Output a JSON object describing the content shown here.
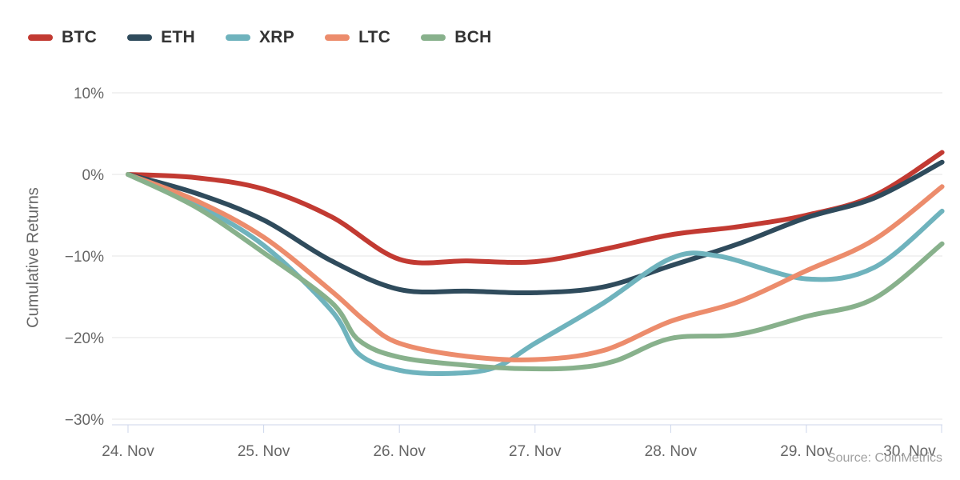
{
  "chart_data": {
    "type": "line",
    "title": "",
    "source": "Source: CoinMetrics",
    "grid": "horizontal-only",
    "legend_position": "top-left",
    "background": "#ffffff",
    "colors": {
      "grid_line": "#e6e6e6",
      "axis_line": "#ccd6eb",
      "axis_label": "#666666",
      "legend_label": "#333333",
      "source_text": "#a0a0a0"
    },
    "y_axis": {
      "title": "Cumulative Returns",
      "unit": "%",
      "range": [
        -30,
        10
      ],
      "ticks": [
        {
          "value": 10,
          "label": "10%"
        },
        {
          "value": 0,
          "label": "0%"
        },
        {
          "value": -10,
          "label": "−10%"
        },
        {
          "value": -20,
          "label": "−20%"
        },
        {
          "value": -30,
          "label": "−30%"
        }
      ]
    },
    "x_axis": {
      "unit": "day",
      "tick_days": [
        0,
        1,
        2,
        3,
        4,
        5,
        6
      ],
      "tick_labels": [
        "24. Nov",
        "25. Nov",
        "26. Nov",
        "27. Nov",
        "28. Nov",
        "29. Nov",
        "30. Nov"
      ]
    },
    "series": [
      {
        "name": "BTC",
        "color": "#c23a32",
        "points": [
          [
            0,
            0
          ],
          [
            0.5,
            -0.4
          ],
          [
            1,
            -1.8
          ],
          [
            1.5,
            -5.2
          ],
          [
            2,
            -10.4
          ],
          [
            2.5,
            -10.6
          ],
          [
            3,
            -10.7
          ],
          [
            3.5,
            -9.2
          ],
          [
            4,
            -7.4
          ],
          [
            4.5,
            -6.4
          ],
          [
            5,
            -5.0
          ],
          [
            5.5,
            -2.6
          ],
          [
            6,
            2.7
          ]
        ]
      },
      {
        "name": "ETH",
        "color": "#2f4b5c",
        "points": [
          [
            0,
            0
          ],
          [
            0.5,
            -2.3
          ],
          [
            1,
            -5.6
          ],
          [
            1.5,
            -10.6
          ],
          [
            2,
            -14.1
          ],
          [
            2.5,
            -14.3
          ],
          [
            3,
            -14.5
          ],
          [
            3.5,
            -13.8
          ],
          [
            4,
            -11.2
          ],
          [
            4.5,
            -8.5
          ],
          [
            5,
            -5.3
          ],
          [
            5.5,
            -2.9
          ],
          [
            6,
            1.5
          ]
        ]
      },
      {
        "name": "XRP",
        "color": "#6fb3bd",
        "points": [
          [
            0,
            0
          ],
          [
            0.5,
            -3.7
          ],
          [
            1,
            -8.7
          ],
          [
            1.5,
            -16.7
          ],
          [
            1.7,
            -22.0
          ],
          [
            2,
            -24.0
          ],
          [
            2.35,
            -24.4
          ],
          [
            2.7,
            -23.7
          ],
          [
            3,
            -20.7
          ],
          [
            3.5,
            -15.8
          ],
          [
            4,
            -10.3
          ],
          [
            4.35,
            -10.0
          ],
          [
            5,
            -12.8
          ],
          [
            5.5,
            -11.4
          ],
          [
            6,
            -4.5
          ]
        ]
      },
      {
        "name": "LTC",
        "color": "#ec8c6c",
        "points": [
          [
            0,
            0
          ],
          [
            0.5,
            -3.2
          ],
          [
            1,
            -7.7
          ],
          [
            1.5,
            -14.3
          ],
          [
            1.75,
            -18.0
          ],
          [
            2,
            -20.7
          ],
          [
            2.5,
            -22.3
          ],
          [
            3,
            -22.7
          ],
          [
            3.5,
            -21.6
          ],
          [
            4,
            -18.0
          ],
          [
            4.5,
            -15.6
          ],
          [
            5,
            -11.8
          ],
          [
            5.5,
            -8.0
          ],
          [
            6,
            -1.5
          ]
        ]
      },
      {
        "name": "BCH",
        "color": "#88b18c",
        "points": [
          [
            0,
            0
          ],
          [
            0.5,
            -4.0
          ],
          [
            1,
            -9.6
          ],
          [
            1.5,
            -15.7
          ],
          [
            1.7,
            -20.3
          ],
          [
            2,
            -22.4
          ],
          [
            2.5,
            -23.4
          ],
          [
            2.9,
            -23.8
          ],
          [
            3.3,
            -23.7
          ],
          [
            3.6,
            -22.8
          ],
          [
            4,
            -20.1
          ],
          [
            4.5,
            -19.6
          ],
          [
            5,
            -17.4
          ],
          [
            5.5,
            -15.2
          ],
          [
            6,
            -8.5
          ]
        ]
      }
    ]
  }
}
